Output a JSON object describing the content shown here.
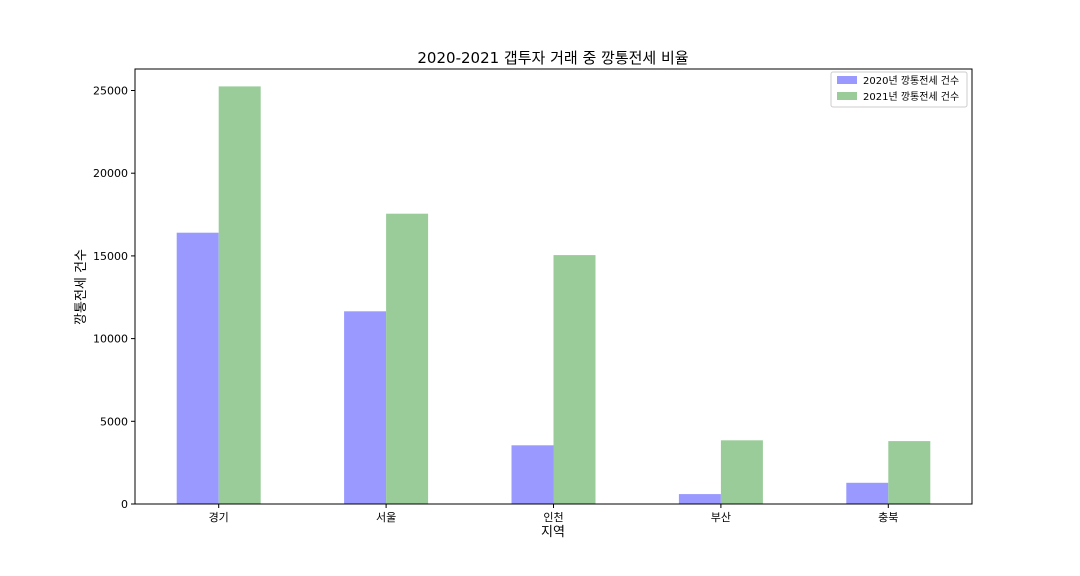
{
  "chart_data": {
    "type": "bar",
    "title": "2020-2021 갭투자 거래 중 깡통전세 비율",
    "xlabel": "지역",
    "ylabel": "깡통전세 건수",
    "categories": [
      "경기",
      "서울",
      "인천",
      "부산",
      "충북"
    ],
    "series": [
      {
        "name": "2020년 깡통전세 건수",
        "color": "#9999ff",
        "values": [
          16400,
          11650,
          3550,
          600,
          1280
        ]
      },
      {
        "name": "2021년 깡통전세 건수",
        "color": "#99cc99",
        "values": [
          25250,
          17550,
          15050,
          3850,
          3800
        ]
      }
    ],
    "ylim": [
      0,
      26300
    ],
    "yticks": [
      0,
      5000,
      10000,
      15000,
      20000,
      25000
    ],
    "grid": false,
    "legend_position": "top-right"
  }
}
